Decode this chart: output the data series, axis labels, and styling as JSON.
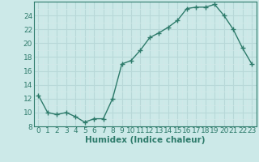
{
  "x": [
    0,
    1,
    2,
    3,
    4,
    5,
    6,
    7,
    8,
    9,
    10,
    11,
    12,
    13,
    14,
    15,
    16,
    17,
    18,
    19,
    20,
    21,
    22,
    23
  ],
  "y": [
    12.5,
    10.0,
    9.7,
    10.0,
    9.4,
    8.6,
    9.1,
    9.1,
    12.0,
    17.0,
    17.5,
    19.0,
    20.8,
    21.5,
    22.3,
    23.3,
    25.0,
    25.2,
    25.2,
    25.6,
    24.0,
    22.0,
    19.3,
    17.0
  ],
  "line_color": "#2e7b6b",
  "marker": "+",
  "marker_size": 4,
  "linewidth": 1.0,
  "bg_color": "#cce9e8",
  "grid_major_color": "#b8d8d8",
  "grid_minor_color": "#d2e8e8",
  "xlabel": "Humidex (Indice chaleur)",
  "ylim": [
    8,
    26
  ],
  "xlim": [
    -0.5,
    23.5
  ],
  "yticks": [
    8,
    10,
    12,
    14,
    16,
    18,
    20,
    22,
    24
  ],
  "xticks": [
    0,
    1,
    2,
    3,
    4,
    5,
    6,
    7,
    8,
    9,
    10,
    11,
    12,
    13,
    14,
    15,
    16,
    17,
    18,
    19,
    20,
    21,
    22,
    23
  ],
  "tick_color": "#2e7b6b",
  "spine_color": "#2e7b6b",
  "tick_fontsize": 6.5,
  "label_fontsize": 7.5
}
